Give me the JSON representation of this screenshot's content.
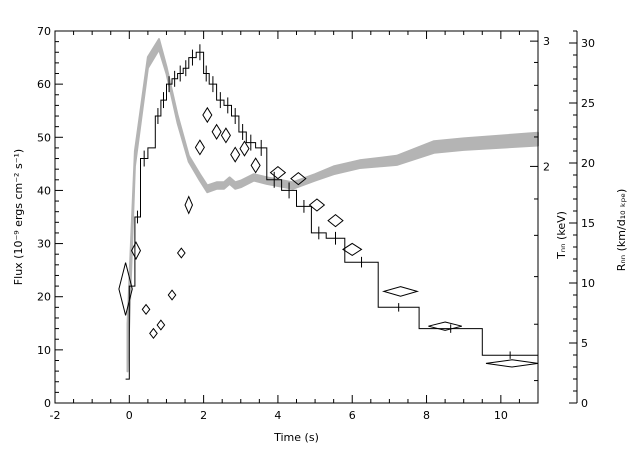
{
  "chart_data": {
    "type": "line",
    "xlabel": "Time (s)",
    "ylabel": "Flux (10⁻⁹ ergs cm⁻² s⁻¹)",
    "y2label": "Tₙₙ (keV)",
    "y3label": "Rₙₙ (km/d₁₀ ₖₚₑ)",
    "xlim": [
      -2,
      11
    ],
    "ylim": [
      0,
      70
    ],
    "y3lim": [
      0,
      31
    ],
    "x_ticks": [
      -2,
      0,
      2,
      4,
      6,
      8,
      10
    ],
    "y_ticks": [
      0,
      10,
      20,
      30,
      40,
      50,
      60,
      70
    ],
    "y2_ticks": [
      {
        "label": "2",
        "y": 2
      },
      {
        "label": "3",
        "y": 3
      }
    ],
    "y2_scale": "log",
    "y2lim": [
      0.93,
      3.1
    ],
    "y3_ticks": [
      0,
      5,
      10,
      15,
      20,
      25,
      30
    ],
    "flux_histogram": [
      {
        "t0": -0.1,
        "t1": 0.0,
        "y": 4.5
      },
      {
        "t0": 0.0,
        "t1": 0.15,
        "y": 22
      },
      {
        "t0": 0.15,
        "t1": 0.3,
        "y": 35
      },
      {
        "t0": 0.3,
        "t1": 0.5,
        "y": 46
      },
      {
        "t0": 0.5,
        "t1": 0.7,
        "y": 48
      },
      {
        "t0": 0.7,
        "t1": 0.85,
        "y": 54
      },
      {
        "t0": 0.85,
        "t1": 1.0,
        "y": 57
      },
      {
        "t0": 1.0,
        "t1": 1.15,
        "y": 60
      },
      {
        "t0": 1.15,
        "t1": 1.3,
        "y": 61
      },
      {
        "t0": 1.3,
        "t1": 1.45,
        "y": 62
      },
      {
        "t0": 1.45,
        "t1": 1.6,
        "y": 63
      },
      {
        "t0": 1.6,
        "t1": 1.8,
        "y": 65
      },
      {
        "t0": 1.8,
        "t1": 2.0,
        "y": 66
      },
      {
        "t0": 2.0,
        "t1": 2.15,
        "y": 62
      },
      {
        "t0": 2.15,
        "t1": 2.35,
        "y": 60
      },
      {
        "t0": 2.35,
        "t1": 2.55,
        "y": 57
      },
      {
        "t0": 2.55,
        "t1": 2.75,
        "y": 56
      },
      {
        "t0": 2.75,
        "t1": 2.95,
        "y": 54
      },
      {
        "t0": 2.95,
        "t1": 3.15,
        "y": 51
      },
      {
        "t0": 3.15,
        "t1": 3.4,
        "y": 49
      },
      {
        "t0": 3.4,
        "t1": 3.7,
        "y": 48
      },
      {
        "t0": 3.7,
        "t1": 4.1,
        "y": 42
      },
      {
        "t0": 4.1,
        "t1": 4.5,
        "y": 40
      },
      {
        "t0": 4.5,
        "t1": 4.9,
        "y": 37
      },
      {
        "t0": 4.9,
        "t1": 5.3,
        "y": 32
      },
      {
        "t0": 5.3,
        "t1": 5.8,
        "y": 31
      },
      {
        "t0": 5.8,
        "t1": 6.7,
        "y": 26.5
      },
      {
        "t0": 6.7,
        "t1": 7.8,
        "y": 18
      },
      {
        "t0": 7.8,
        "t1": 9.5,
        "y": 14
      },
      {
        "t0": 9.5,
        "t1": 11,
        "y": 9
      }
    ],
    "flux_errors": [
      {
        "x": 0.22,
        "y": 35,
        "err": 1.2
      },
      {
        "x": 0.4,
        "y": 46,
        "err": 1.5
      },
      {
        "x": 0.77,
        "y": 54,
        "err": 1.5
      },
      {
        "x": 0.92,
        "y": 57,
        "err": 1.5
      },
      {
        "x": 1.07,
        "y": 60,
        "err": 1.5
      },
      {
        "x": 1.22,
        "y": 61,
        "err": 1.5
      },
      {
        "x": 1.37,
        "y": 62,
        "err": 1.5
      },
      {
        "x": 1.52,
        "y": 63,
        "err": 1.5
      },
      {
        "x": 1.7,
        "y": 65,
        "err": 1.5
      },
      {
        "x": 1.9,
        "y": 66,
        "err": 1.5
      },
      {
        "x": 2.07,
        "y": 62,
        "err": 1.5
      },
      {
        "x": 2.25,
        "y": 60,
        "err": 1.5
      },
      {
        "x": 2.45,
        "y": 57,
        "err": 1.5
      },
      {
        "x": 2.65,
        "y": 56,
        "err": 1.5
      },
      {
        "x": 2.85,
        "y": 54,
        "err": 1.5
      },
      {
        "x": 3.05,
        "y": 51,
        "err": 1.5
      },
      {
        "x": 3.27,
        "y": 49,
        "err": 1.5
      },
      {
        "x": 3.55,
        "y": 48,
        "err": 1.5
      },
      {
        "x": 3.9,
        "y": 42,
        "err": 1.5
      },
      {
        "x": 4.3,
        "y": 40,
        "err": 1.5
      },
      {
        "x": 4.7,
        "y": 37,
        "err": 1.2
      },
      {
        "x": 5.1,
        "y": 32,
        "err": 1.2
      },
      {
        "x": 5.55,
        "y": 31,
        "err": 1.2
      },
      {
        "x": 6.25,
        "y": 26.5,
        "err": 1.0
      },
      {
        "x": 7.25,
        "y": 18,
        "err": 0.8
      },
      {
        "x": 8.65,
        "y": 14,
        "err": 0.8
      },
      {
        "x": 10.25,
        "y": 9,
        "err": 0.7
      }
    ],
    "kT_band": [
      {
        "x": -0.05,
        "lo": 1.03,
        "hi": 1.2
      },
      {
        "x": 0.15,
        "lo": 2.0,
        "hi": 2.1
      },
      {
        "x": 0.5,
        "lo": 2.75,
        "hi": 2.85
      },
      {
        "x": 0.8,
        "lo": 2.92,
        "hi": 3.02
      },
      {
        "x": 1.0,
        "lo": 2.7,
        "hi": 2.76
      },
      {
        "x": 1.3,
        "lo": 2.3,
        "hi": 2.36
      },
      {
        "x": 1.6,
        "lo": 2.03,
        "hi": 2.07
      },
      {
        "x": 1.9,
        "lo": 1.91,
        "hi": 1.95
      },
      {
        "x": 2.1,
        "lo": 1.84,
        "hi": 1.88
      },
      {
        "x": 2.35,
        "lo": 1.86,
        "hi": 1.9
      },
      {
        "x": 2.55,
        "lo": 1.86,
        "hi": 1.9
      },
      {
        "x": 2.7,
        "lo": 1.89,
        "hi": 1.93
      },
      {
        "x": 2.85,
        "lo": 1.86,
        "hi": 1.9
      },
      {
        "x": 3.0,
        "lo": 1.87,
        "hi": 1.91
      },
      {
        "x": 3.35,
        "lo": 1.91,
        "hi": 1.95
      },
      {
        "x": 3.7,
        "lo": 1.89,
        "hi": 1.93
      },
      {
        "x": 4.4,
        "lo": 1.86,
        "hi": 1.9
      },
      {
        "x": 5.0,
        "lo": 1.91,
        "hi": 1.95
      },
      {
        "x": 5.5,
        "lo": 1.95,
        "hi": 2.0
      },
      {
        "x": 6.2,
        "lo": 1.99,
        "hi": 2.04
      },
      {
        "x": 7.2,
        "lo": 2.01,
        "hi": 2.07
      },
      {
        "x": 8.2,
        "lo": 2.09,
        "hi": 2.17
      },
      {
        "x": 9.0,
        "lo": 2.11,
        "hi": 2.19
      },
      {
        "x": 11.0,
        "lo": 2.14,
        "hi": 2.23
      }
    ],
    "radius_points": [
      {
        "x": -0.1,
        "y": 9.5,
        "dx": 0.18,
        "dy": 2.2
      },
      {
        "x": 0.18,
        "y": 12.7,
        "dx": 0.12,
        "dy": 0.7
      },
      {
        "x": 0.45,
        "y": 7.8,
        "dx": 0.1,
        "dy": 0.4
      },
      {
        "x": 0.65,
        "y": 5.8,
        "dx": 0.1,
        "dy": 0.4
      },
      {
        "x": 0.85,
        "y": 6.5,
        "dx": 0.1,
        "dy": 0.4
      },
      {
        "x": 1.15,
        "y": 9.0,
        "dx": 0.1,
        "dy": 0.4
      },
      {
        "x": 1.4,
        "y": 12.5,
        "dx": 0.1,
        "dy": 0.4
      },
      {
        "x": 1.6,
        "y": 16.5,
        "dx": 0.1,
        "dy": 0.7
      },
      {
        "x": 1.9,
        "y": 21.3,
        "dx": 0.12,
        "dy": 0.6
      },
      {
        "x": 2.1,
        "y": 24.0,
        "dx": 0.12,
        "dy": 0.6
      },
      {
        "x": 2.35,
        "y": 22.6,
        "dx": 0.12,
        "dy": 0.6
      },
      {
        "x": 2.6,
        "y": 22.3,
        "dx": 0.12,
        "dy": 0.6
      },
      {
        "x": 2.85,
        "y": 20.7,
        "dx": 0.12,
        "dy": 0.6
      },
      {
        "x": 3.1,
        "y": 21.2,
        "dx": 0.12,
        "dy": 0.6
      },
      {
        "x": 3.4,
        "y": 19.8,
        "dx": 0.12,
        "dy": 0.6
      },
      {
        "x": 4.0,
        "y": 19.2,
        "dx": 0.2,
        "dy": 0.5
      },
      {
        "x": 4.55,
        "y": 18.7,
        "dx": 0.2,
        "dy": 0.5
      },
      {
        "x": 5.05,
        "y": 16.5,
        "dx": 0.2,
        "dy": 0.5
      },
      {
        "x": 5.55,
        "y": 15.2,
        "dx": 0.2,
        "dy": 0.5
      },
      {
        "x": 6.0,
        "y": 12.8,
        "dx": 0.25,
        "dy": 0.5
      },
      {
        "x": 7.3,
        "y": 9.3,
        "dx": 0.45,
        "dy": 0.4
      },
      {
        "x": 8.5,
        "y": 6.4,
        "dx": 0.45,
        "dy": 0.35
      },
      {
        "x": 10.3,
        "y": 3.3,
        "dx": 0.7,
        "dy": 0.3
      }
    ]
  }
}
